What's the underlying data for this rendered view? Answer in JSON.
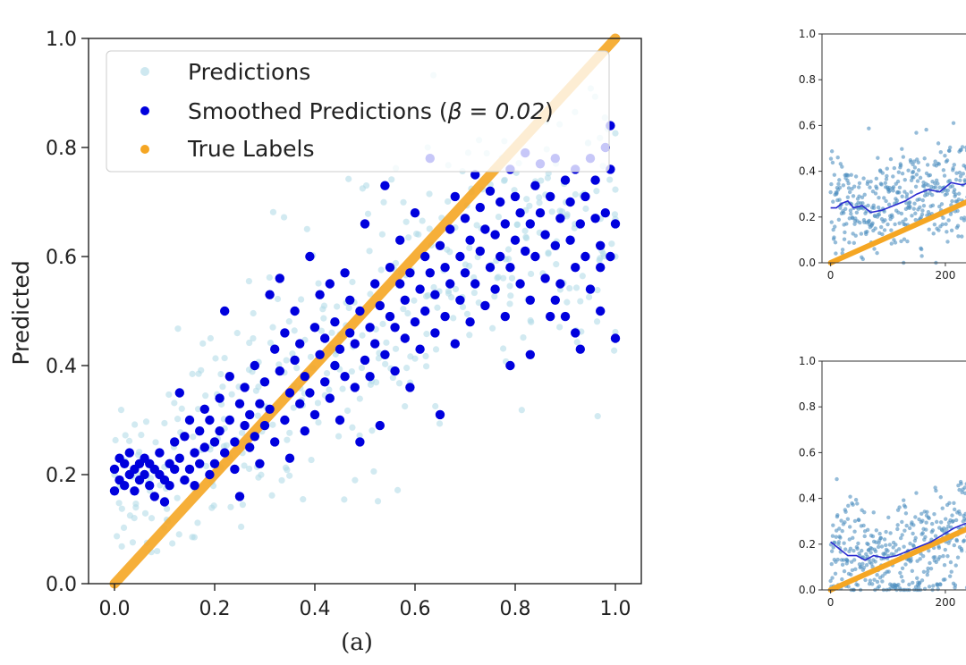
{
  "chart_data": [
    {
      "type": "scatter",
      "panel": "a",
      "caption": "(a)",
      "title": "",
      "xlabel": "",
      "ylabel": "Predicted",
      "xlim": [
        0,
        1
      ],
      "ylim": [
        0,
        1
      ],
      "xticks": [
        "0.0",
        "0.2",
        "0.4",
        "0.6",
        "0.8",
        "1.0"
      ],
      "yticks": [
        "0.0",
        "0.2",
        "0.4",
        "0.6",
        "0.8",
        "1.0"
      ],
      "grid": false,
      "legend_placement": "top-left",
      "legend": {
        "predictions": "Predictions",
        "smoothed_prefix": "Smoothed Predictions (",
        "smoothed_beta": "β = 0.02",
        "smoothed_suffix": ")",
        "true_labels": "True Labels"
      },
      "colors": {
        "predictions": "#add8e6",
        "smoothed": "#0000dd",
        "true_labels": "#f5a623"
      },
      "series": [
        {
          "name": "Smoothed Predictions (β = 0.02)",
          "points": [
            [
              0.0,
              0.17
            ],
            [
              0.0,
              0.21
            ],
            [
              0.01,
              0.23
            ],
            [
              0.01,
              0.19
            ],
            [
              0.02,
              0.22
            ],
            [
              0.02,
              0.18
            ],
            [
              0.03,
              0.2
            ],
            [
              0.03,
              0.24
            ],
            [
              0.04,
              0.21
            ],
            [
              0.04,
              0.17
            ],
            [
              0.05,
              0.22
            ],
            [
              0.05,
              0.19
            ],
            [
              0.06,
              0.23
            ],
            [
              0.06,
              0.2
            ],
            [
              0.07,
              0.18
            ],
            [
              0.07,
              0.22
            ],
            [
              0.08,
              0.21
            ],
            [
              0.08,
              0.16
            ],
            [
              0.09,
              0.2
            ],
            [
              0.09,
              0.24
            ],
            [
              0.1,
              0.19
            ],
            [
              0.1,
              0.15
            ],
            [
              0.11,
              0.22
            ],
            [
              0.11,
              0.18
            ],
            [
              0.12,
              0.26
            ],
            [
              0.12,
              0.21
            ],
            [
              0.13,
              0.35
            ],
            [
              0.13,
              0.23
            ],
            [
              0.14,
              0.19
            ],
            [
              0.14,
              0.27
            ],
            [
              0.15,
              0.21
            ],
            [
              0.15,
              0.3
            ],
            [
              0.16,
              0.24
            ],
            [
              0.16,
              0.18
            ],
            [
              0.17,
              0.28
            ],
            [
              0.17,
              0.22
            ],
            [
              0.18,
              0.32
            ],
            [
              0.18,
              0.25
            ],
            [
              0.19,
              0.2
            ],
            [
              0.19,
              0.3
            ],
            [
              0.2,
              0.26
            ],
            [
              0.2,
              0.22
            ],
            [
              0.21,
              0.34
            ],
            [
              0.21,
              0.28
            ],
            [
              0.22,
              0.5
            ],
            [
              0.22,
              0.24
            ],
            [
              0.23,
              0.3
            ],
            [
              0.23,
              0.38
            ],
            [
              0.24,
              0.26
            ],
            [
              0.24,
              0.21
            ],
            [
              0.25,
              0.33
            ],
            [
              0.25,
              0.16
            ],
            [
              0.26,
              0.29
            ],
            [
              0.26,
              0.36
            ],
            [
              0.27,
              0.25
            ],
            [
              0.27,
              0.31
            ],
            [
              0.28,
              0.4
            ],
            [
              0.28,
              0.27
            ],
            [
              0.29,
              0.33
            ],
            [
              0.29,
              0.22
            ],
            [
              0.3,
              0.37
            ],
            [
              0.3,
              0.29
            ],
            [
              0.31,
              0.53
            ],
            [
              0.31,
              0.32
            ],
            [
              0.32,
              0.43
            ],
            [
              0.32,
              0.26
            ],
            [
              0.33,
              0.39
            ],
            [
              0.33,
              0.56
            ],
            [
              0.34,
              0.3
            ],
            [
              0.34,
              0.46
            ],
            [
              0.35,
              0.35
            ],
            [
              0.35,
              0.23
            ],
            [
              0.36,
              0.41
            ],
            [
              0.36,
              0.5
            ],
            [
              0.37,
              0.33
            ],
            [
              0.37,
              0.44
            ],
            [
              0.38,
              0.28
            ],
            [
              0.38,
              0.38
            ],
            [
              0.39,
              0.6
            ],
            [
              0.39,
              0.35
            ],
            [
              0.4,
              0.47
            ],
            [
              0.4,
              0.31
            ],
            [
              0.41,
              0.42
            ],
            [
              0.41,
              0.53
            ],
            [
              0.42,
              0.37
            ],
            [
              0.42,
              0.45
            ],
            [
              0.43,
              0.34
            ],
            [
              0.43,
              0.55
            ],
            [
              0.44,
              0.4
            ],
            [
              0.44,
              0.48
            ],
            [
              0.45,
              0.3
            ],
            [
              0.45,
              0.43
            ],
            [
              0.46,
              0.57
            ],
            [
              0.46,
              0.38
            ],
            [
              0.47,
              0.46
            ],
            [
              0.47,
              0.52
            ],
            [
              0.48,
              0.36
            ],
            [
              0.48,
              0.44
            ],
            [
              0.49,
              0.26
            ],
            [
              0.49,
              0.5
            ],
            [
              0.5,
              0.41
            ],
            [
              0.5,
              0.66
            ],
            [
              0.51,
              0.47
            ],
            [
              0.51,
              0.38
            ],
            [
              0.52,
              0.55
            ],
            [
              0.52,
              0.44
            ],
            [
              0.53,
              0.29
            ],
            [
              0.53,
              0.51
            ],
            [
              0.54,
              0.73
            ],
            [
              0.54,
              0.42
            ],
            [
              0.55,
              0.49
            ],
            [
              0.55,
              0.58
            ],
            [
              0.56,
              0.39
            ],
            [
              0.56,
              0.47
            ],
            [
              0.57,
              0.55
            ],
            [
              0.57,
              0.63
            ],
            [
              0.58,
              0.45
            ],
            [
              0.58,
              0.52
            ],
            [
              0.59,
              0.36
            ],
            [
              0.59,
              0.57
            ],
            [
              0.6,
              0.48
            ],
            [
              0.6,
              0.68
            ],
            [
              0.61,
              0.54
            ],
            [
              0.61,
              0.43
            ],
            [
              0.62,
              0.6
            ],
            [
              0.62,
              0.5
            ],
            [
              0.63,
              0.57
            ],
            [
              0.63,
              0.78
            ],
            [
              0.64,
              0.46
            ],
            [
              0.64,
              0.53
            ],
            [
              0.65,
              0.31
            ],
            [
              0.65,
              0.62
            ],
            [
              0.66,
              0.58
            ],
            [
              0.66,
              0.49
            ],
            [
              0.67,
              0.65
            ],
            [
              0.67,
              0.55
            ],
            [
              0.68,
              0.71
            ],
            [
              0.68,
              0.44
            ],
            [
              0.69,
              0.6
            ],
            [
              0.69,
              0.52
            ],
            [
              0.7,
              0.67
            ],
            [
              0.7,
              0.57
            ],
            [
              0.71,
              0.48
            ],
            [
              0.71,
              0.63
            ],
            [
              0.72,
              0.75
            ],
            [
              0.72,
              0.55
            ],
            [
              0.73,
              0.61
            ],
            [
              0.73,
              0.69
            ],
            [
              0.74,
              0.51
            ],
            [
              0.74,
              0.65
            ],
            [
              0.75,
              0.58
            ],
            [
              0.75,
              0.72
            ],
            [
              0.76,
              0.64
            ],
            [
              0.76,
              0.54
            ],
            [
              0.77,
              0.7
            ],
            [
              0.77,
              0.6
            ],
            [
              0.78,
              0.49
            ],
            [
              0.78,
              0.66
            ],
            [
              0.79,
              0.76
            ],
            [
              0.79,
              0.58
            ],
            [
              0.8,
              0.63
            ],
            [
              0.8,
              0.71
            ],
            [
              0.81,
              0.55
            ],
            [
              0.81,
              0.68
            ],
            [
              0.82,
              0.61
            ],
            [
              0.82,
              0.79
            ],
            [
              0.83,
              0.66
            ],
            [
              0.83,
              0.52
            ],
            [
              0.84,
              0.73
            ],
            [
              0.84,
              0.6
            ],
            [
              0.85,
              0.68
            ],
            [
              0.85,
              0.77
            ],
            [
              0.86,
              0.56
            ],
            [
              0.86,
              0.64
            ],
            [
              0.87,
              0.71
            ],
            [
              0.87,
              0.49
            ],
            [
              0.88,
              0.62
            ],
            [
              0.88,
              0.78
            ],
            [
              0.89,
              0.67
            ],
            [
              0.89,
              0.55
            ],
            [
              0.9,
              0.74
            ],
            [
              0.9,
              0.49
            ],
            [
              0.91,
              0.63
            ],
            [
              0.91,
              0.7
            ],
            [
              0.92,
              0.58
            ],
            [
              0.92,
              0.76
            ],
            [
              0.93,
              0.66
            ],
            [
              0.93,
              0.43
            ],
            [
              0.94,
              0.71
            ],
            [
              0.94,
              0.6
            ],
            [
              0.95,
              0.78
            ],
            [
              0.95,
              0.54
            ],
            [
              0.96,
              0.67
            ],
            [
              0.96,
              0.74
            ],
            [
              0.97,
              0.62
            ],
            [
              0.97,
              0.5
            ],
            [
              0.98,
              0.8
            ],
            [
              0.98,
              0.68
            ],
            [
              0.99,
              0.76
            ],
            [
              0.99,
              0.84
            ],
            [
              1.0,
              0.66
            ],
            [
              1.0,
              0.45
            ],
            [
              0.97,
              0.58
            ],
            [
              0.99,
              0.6
            ],
            [
              0.92,
              0.46
            ],
            [
              0.88,
              0.52
            ],
            [
              0.83,
              0.42
            ],
            [
              0.79,
              0.4
            ]
          ]
        },
        {
          "name": "True Labels",
          "points": [
            [
              0.0,
              0.0
            ],
            [
              1.0,
              1.0
            ]
          ]
        }
      ]
    },
    {
      "type": "scatter",
      "panel": "top-right",
      "title": "",
      "xlabel": "",
      "ylabel": "",
      "xlim": [
        -15,
        250
      ],
      "ylim": [
        0,
        1
      ],
      "xticks": [
        "0",
        "200"
      ],
      "yticks": [
        "0.0",
        "0.2",
        "0.4",
        "0.6",
        "0.8",
        "1.0"
      ],
      "colors": {
        "scatter": "#4f8fbf",
        "smoothed": "#2a2ad0",
        "true_labels": "#f5a623"
      },
      "smoothed_line": [
        [
          0,
          0.24
        ],
        [
          10,
          0.24
        ],
        [
          20,
          0.26
        ],
        [
          30,
          0.27
        ],
        [
          40,
          0.24
        ],
        [
          55,
          0.25
        ],
        [
          70,
          0.22
        ],
        [
          90,
          0.23
        ],
        [
          110,
          0.25
        ],
        [
          130,
          0.27
        ],
        [
          150,
          0.3
        ],
        [
          170,
          0.32
        ],
        [
          190,
          0.31
        ],
        [
          210,
          0.35
        ],
        [
          230,
          0.34
        ],
        [
          250,
          0.36
        ]
      ],
      "true_line": [
        [
          0,
          0.0
        ],
        [
          250,
          0.28
        ]
      ]
    },
    {
      "type": "scatter",
      "panel": "bottom-right",
      "title": "",
      "xlabel": "",
      "ylabel": "",
      "xlim": [
        -15,
        250
      ],
      "ylim": [
        0,
        1
      ],
      "xticks": [
        "0",
        "200"
      ],
      "yticks": [
        "0.0",
        "0.2",
        "0.4",
        "0.6",
        "0.8",
        "1.0"
      ],
      "colors": {
        "scatter": "#4f8fbf",
        "smoothed": "#2a2ad0",
        "true_labels": "#f5a623"
      },
      "smoothed_line": [
        [
          0,
          0.21
        ],
        [
          15,
          0.18
        ],
        [
          30,
          0.15
        ],
        [
          45,
          0.15
        ],
        [
          60,
          0.13
        ],
        [
          75,
          0.15
        ],
        [
          95,
          0.14
        ],
        [
          115,
          0.15
        ],
        [
          135,
          0.17
        ],
        [
          155,
          0.19
        ],
        [
          175,
          0.21
        ],
        [
          195,
          0.24
        ],
        [
          215,
          0.27
        ],
        [
          235,
          0.29
        ],
        [
          250,
          0.3
        ]
      ],
      "true_line": [
        [
          0,
          0.0
        ],
        [
          250,
          0.28
        ]
      ]
    }
  ]
}
